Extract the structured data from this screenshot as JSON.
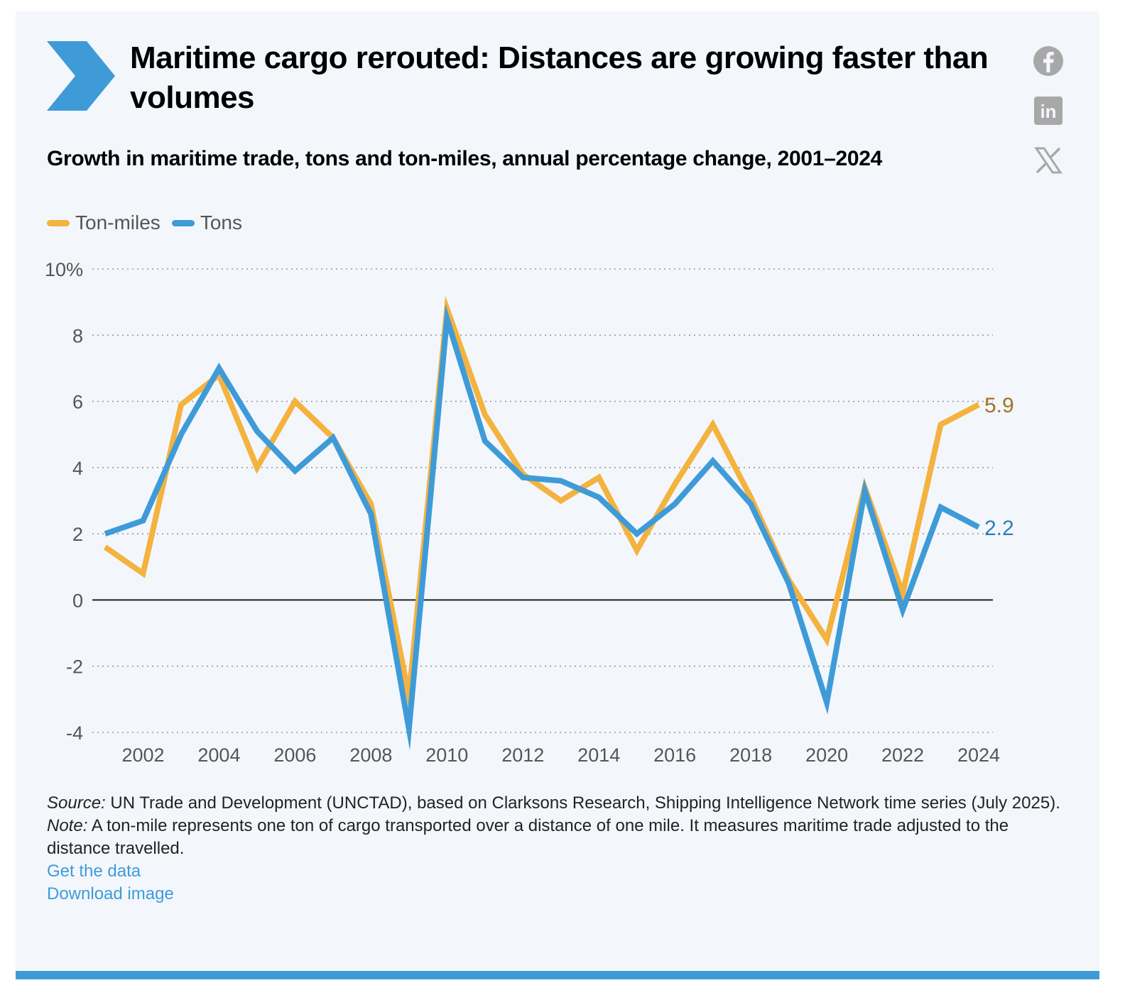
{
  "header": {
    "title": "Maritime cargo rerouted: Distances are growing faster than volumes",
    "subtitle": "Growth in maritime trade, tons and ton-miles, annual percentage change, 2001–2024"
  },
  "social": [
    {
      "name": "facebook-icon"
    },
    {
      "name": "linkedin-icon",
      "glyph": "in"
    },
    {
      "name": "x-icon",
      "glyph": "𝕏"
    }
  ],
  "colors": {
    "ton_miles": "#f4b23f",
    "tons": "#3f9bd8",
    "ton_miles_label": "#a07226",
    "tons_label": "#2f7fb3",
    "accent": "#3f9bd8"
  },
  "chart_data": {
    "type": "line",
    "x": [
      2001,
      2002,
      2003,
      2004,
      2005,
      2006,
      2007,
      2008,
      2009,
      2010,
      2011,
      2012,
      2013,
      2014,
      2015,
      2016,
      2017,
      2018,
      2019,
      2020,
      2021,
      2022,
      2023,
      2024
    ],
    "series": [
      {
        "name": "Ton-miles",
        "values": [
          1.6,
          0.8,
          5.9,
          6.8,
          4.0,
          6.0,
          4.9,
          2.9,
          -2.9,
          8.8,
          5.6,
          3.8,
          3.0,
          3.7,
          1.5,
          3.5,
          5.3,
          3.1,
          0.6,
          -1.2,
          3.4,
          0.2,
          5.3,
          5.9
        ]
      },
      {
        "name": "Tons",
        "values": [
          2.0,
          2.4,
          5.0,
          7.0,
          5.1,
          3.9,
          4.9,
          2.6,
          -3.9,
          8.5,
          4.8,
          3.7,
          3.6,
          3.1,
          2.0,
          2.9,
          4.2,
          2.9,
          0.5,
          -3.1,
          3.3,
          -0.3,
          2.8,
          2.2
        ]
      }
    ],
    "end_labels": [
      "5.9",
      "2.2"
    ],
    "ylim": [
      -4,
      10
    ],
    "y_ticks": [
      -4,
      -2,
      0,
      2,
      4,
      6,
      8,
      10
    ],
    "y_tick_labels": [
      "-4",
      "-2",
      "0",
      "2",
      "4",
      "6",
      "8",
      "10%"
    ],
    "x_ticks": [
      2002,
      2004,
      2006,
      2008,
      2010,
      2012,
      2014,
      2016,
      2018,
      2020,
      2022,
      2024
    ],
    "grid": "horizontal dotted",
    "legend": "top-left"
  },
  "footer": {
    "source_label": "Source:",
    "source_text": " UN Trade and Development (UNCTAD), based on Clarksons Research, Shipping Intelligence Network time series (July 2025).",
    "note_label": "Note:",
    "note_text": " A ton-mile represents one ton of cargo transported over a distance of one mile. It measures maritime trade adjusted to the distance travelled.",
    "get_data": "Get the data",
    "download": "Download image"
  }
}
